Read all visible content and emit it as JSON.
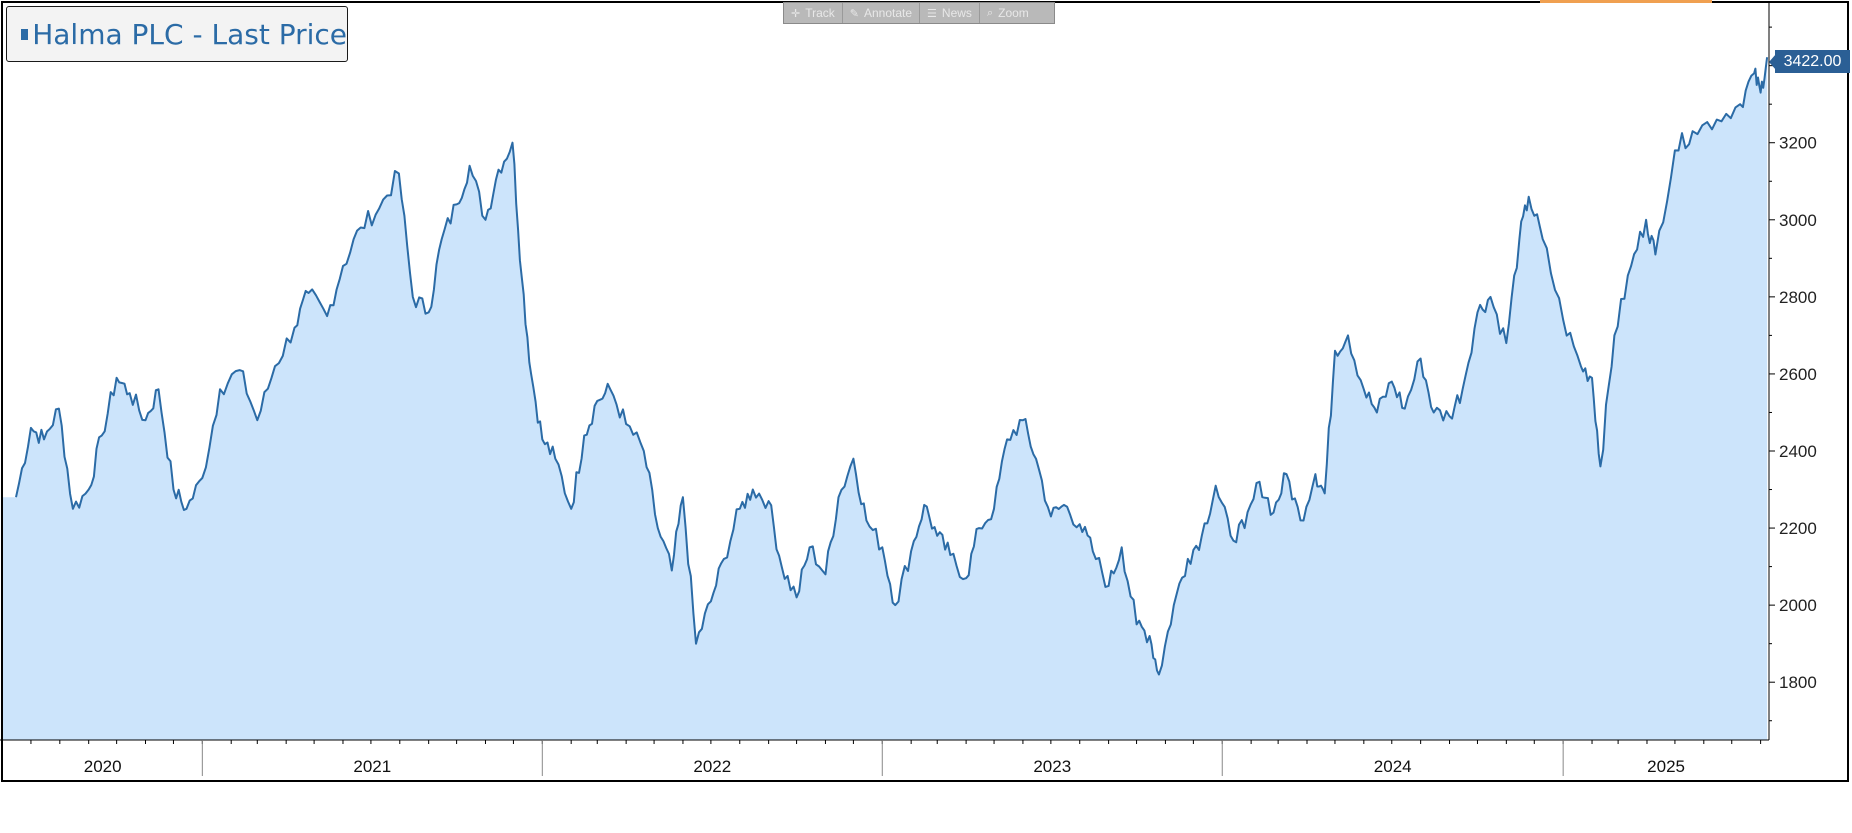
{
  "toolbar": {
    "items": [
      {
        "label": "Track",
        "icon": "crosshair-icon"
      },
      {
        "label": "Annotate",
        "icon": "pencil-icon"
      },
      {
        "label": "News",
        "icon": "news-icon"
      },
      {
        "label": "Zoom",
        "icon": "magnifier-icon"
      }
    ]
  },
  "colors": {
    "line": "#2b6ba6",
    "area": "#cce4fb",
    "badge": "#2b5f95",
    "toolbar": "#b9b9b9"
  },
  "chart_data": {
    "type": "area",
    "series": [
      {
        "name": "Halma PLC - Last Price",
        "points": [
          [
            "2020-06-15",
            2280
          ],
          [
            "2020-07-01",
            2460
          ],
          [
            "2020-07-15",
            2430
          ],
          [
            "2020-07-31",
            2510
          ],
          [
            "2020-08-15",
            2250
          ],
          [
            "2020-09-01",
            2300
          ],
          [
            "2020-09-15",
            2440
          ],
          [
            "2020-10-01",
            2590
          ],
          [
            "2020-10-15",
            2550
          ],
          [
            "2020-11-01",
            2480
          ],
          [
            "2020-11-15",
            2560
          ],
          [
            "2020-12-01",
            2300
          ],
          [
            "2020-12-15",
            2250
          ],
          [
            "2021-01-01",
            2330
          ],
          [
            "2021-01-20",
            2560
          ],
          [
            "2021-02-10",
            2610
          ],
          [
            "2021-03-01",
            2480
          ],
          [
            "2021-03-20",
            2620
          ],
          [
            "2021-04-10",
            2720
          ],
          [
            "2021-04-25",
            2810
          ],
          [
            "2021-05-15",
            2750
          ],
          [
            "2021-06-01",
            2880
          ],
          [
            "2021-06-20",
            2980
          ],
          [
            "2021-07-10",
            3030
          ],
          [
            "2021-07-31",
            3120
          ],
          [
            "2021-08-15",
            2800
          ],
          [
            "2021-09-01",
            2760
          ],
          [
            "2021-09-15",
            2950
          ],
          [
            "2021-10-01",
            3040
          ],
          [
            "2021-10-15",
            3140
          ],
          [
            "2021-11-01",
            3000
          ],
          [
            "2021-11-15",
            3130
          ],
          [
            "2021-11-30",
            3200
          ],
          [
            "2021-12-10",
            2850
          ],
          [
            "2021-12-20",
            2600
          ],
          [
            "2022-01-01",
            2430
          ],
          [
            "2022-01-15",
            2380
          ],
          [
            "2022-02-01",
            2250
          ],
          [
            "2022-02-15",
            2440
          ],
          [
            "2022-03-01",
            2530
          ],
          [
            "2022-03-15",
            2560
          ],
          [
            "2022-04-01",
            2470
          ],
          [
            "2022-04-20",
            2400
          ],
          [
            "2022-05-05",
            2200
          ],
          [
            "2022-05-20",
            2090
          ],
          [
            "2022-06-01",
            2280
          ],
          [
            "2022-06-15",
            1900
          ],
          [
            "2022-07-01",
            2010
          ],
          [
            "2022-07-15",
            2120
          ],
          [
            "2022-08-01",
            2250
          ],
          [
            "2022-08-15",
            2300
          ],
          [
            "2022-09-01",
            2270
          ],
          [
            "2022-09-15",
            2100
          ],
          [
            "2022-10-01",
            2020
          ],
          [
            "2022-10-15",
            2150
          ],
          [
            "2022-11-01",
            2080
          ],
          [
            "2022-11-15",
            2280
          ],
          [
            "2022-12-01",
            2380
          ],
          [
            "2022-12-15",
            2220
          ],
          [
            "2023-01-01",
            2150
          ],
          [
            "2023-01-15",
            2000
          ],
          [
            "2023-02-01",
            2140
          ],
          [
            "2023-02-15",
            2260
          ],
          [
            "2023-03-01",
            2180
          ],
          [
            "2023-03-15",
            2130
          ],
          [
            "2023-04-01",
            2070
          ],
          [
            "2023-04-15",
            2200
          ],
          [
            "2023-05-01",
            2250
          ],
          [
            "2023-05-15",
            2430
          ],
          [
            "2023-06-01",
            2480
          ],
          [
            "2023-06-15",
            2380
          ],
          [
            "2023-07-01",
            2230
          ],
          [
            "2023-07-15",
            2260
          ],
          [
            "2023-08-01",
            2210
          ],
          [
            "2023-08-15",
            2140
          ],
          [
            "2023-09-01",
            2050
          ],
          [
            "2023-09-15",
            2150
          ],
          [
            "2023-10-01",
            1950
          ],
          [
            "2023-10-15",
            1920
          ],
          [
            "2023-10-25",
            1820
          ],
          [
            "2023-11-10",
            2000
          ],
          [
            "2023-11-25",
            2120
          ],
          [
            "2023-12-10",
            2180
          ],
          [
            "2023-12-25",
            2310
          ],
          [
            "2024-01-10",
            2180
          ],
          [
            "2024-01-25",
            2200
          ],
          [
            "2024-02-10",
            2320
          ],
          [
            "2024-02-25",
            2240
          ],
          [
            "2024-03-10",
            2340
          ],
          [
            "2024-03-25",
            2220
          ],
          [
            "2024-04-10",
            2340
          ],
          [
            "2024-04-20",
            2290
          ],
          [
            "2024-05-01",
            2660
          ],
          [
            "2024-05-15",
            2700
          ],
          [
            "2024-06-01",
            2560
          ],
          [
            "2024-06-15",
            2500
          ],
          [
            "2024-07-01",
            2580
          ],
          [
            "2024-07-15",
            2510
          ],
          [
            "2024-08-01",
            2640
          ],
          [
            "2024-08-15",
            2500
          ],
          [
            "2024-09-01",
            2490
          ],
          [
            "2024-09-15",
            2560
          ],
          [
            "2024-10-01",
            2760
          ],
          [
            "2024-10-15",
            2800
          ],
          [
            "2024-11-01",
            2680
          ],
          [
            "2024-11-15",
            2950
          ],
          [
            "2024-11-25",
            3060
          ],
          [
            "2024-12-10",
            2950
          ],
          [
            "2025-01-01",
            2740
          ],
          [
            "2025-01-20",
            2620
          ],
          [
            "2025-02-01",
            2590
          ],
          [
            "2025-02-10",
            2360
          ],
          [
            "2025-02-25",
            2700
          ],
          [
            "2025-03-15",
            2880
          ],
          [
            "2025-03-31",
            3000
          ],
          [
            "2025-04-10",
            2910
          ],
          [
            "2025-05-01",
            3180
          ],
          [
            "2025-05-20",
            3230
          ],
          [
            "2025-06-15",
            3260
          ],
          [
            "2025-07-10",
            3300
          ],
          [
            "2025-07-25",
            3380
          ],
          [
            "2025-08-01",
            3330
          ],
          [
            "2025-08-08",
            3422
          ]
        ]
      }
    ],
    "ylim": [
      1650,
      3560
    ],
    "yticks": [
      1800,
      2000,
      2200,
      2400,
      2600,
      2800,
      3000,
      3200,
      3400
    ],
    "year_labels": [
      "2020",
      "2021",
      "2022",
      "2023",
      "2024",
      "2025"
    ],
    "x_range": [
      "2020-06-01",
      "2025-08-10"
    ],
    "last_value": 3422,
    "last_value_label": "3422.00",
    "grid": false,
    "legend_position": "top-left"
  }
}
